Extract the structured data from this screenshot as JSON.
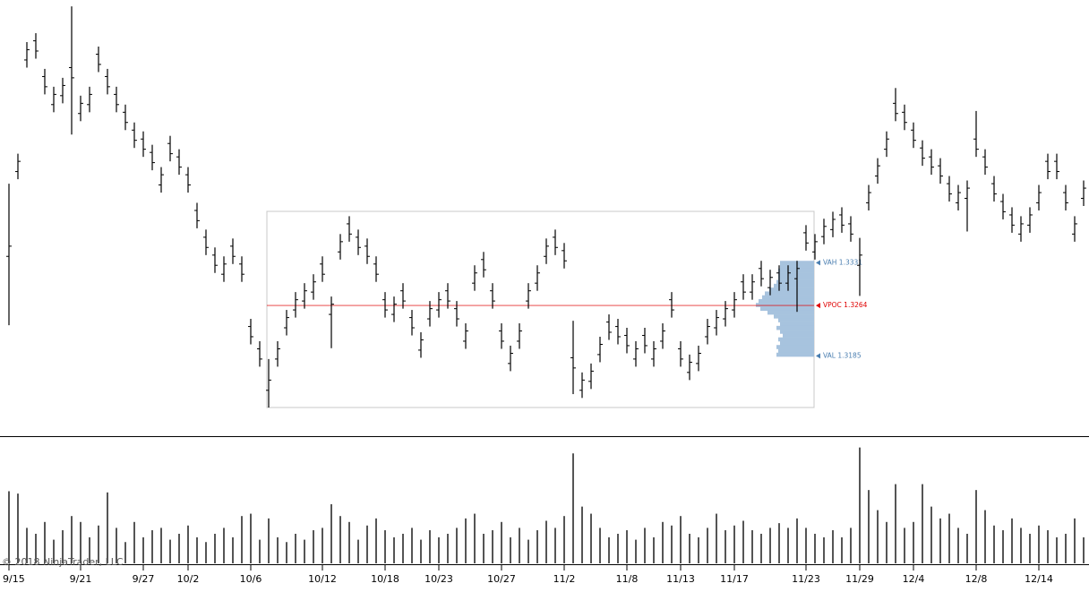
{
  "copyright": "© 2018 NinjaTrader, LLC",
  "chart_data": [
    {
      "type": "ohlc",
      "color": "#000000",
      "ylim": [
        1.3104,
        1.3736
      ],
      "categories": [
        "9/15",
        null,
        null,
        null,
        null,
        null,
        null,
        null,
        "9/21",
        null,
        null,
        null,
        null,
        null,
        null,
        "9/27",
        null,
        null,
        null,
        null,
        "10/2",
        null,
        null,
        null,
        null,
        null,
        null,
        "10/6",
        null,
        null,
        null,
        null,
        null,
        null,
        null,
        "10/12",
        null,
        null,
        null,
        null,
        null,
        null,
        "10/18",
        null,
        null,
        null,
        null,
        null,
        "10/23",
        null,
        null,
        null,
        null,
        null,
        null,
        "10/27",
        null,
        null,
        null,
        null,
        null,
        null,
        "11/2",
        null,
        null,
        null,
        null,
        null,
        null,
        "11/8",
        null,
        null,
        null,
        null,
        null,
        "11/13",
        null,
        null,
        null,
        null,
        null,
        "11/17",
        null,
        null,
        null,
        null,
        null,
        null,
        null,
        "11/23",
        null,
        null,
        null,
        null,
        null,
        "11/29",
        null,
        null,
        null,
        null,
        null,
        "12/4",
        null,
        null,
        null,
        null,
        null,
        null,
        "12/8",
        null,
        null,
        null,
        null,
        null,
        null,
        "12/14",
        null,
        null,
        null,
        null,
        null
      ],
      "open": [
        1.3341,
        1.3474,
        1.3649,
        1.3679,
        1.3623,
        1.3579,
        1.3593,
        1.3637,
        1.3565,
        1.3579,
        1.3658,
        1.3623,
        1.3595,
        1.3567,
        1.3539,
        1.3525,
        1.3504,
        1.3453,
        1.3518,
        1.3497,
        1.3469,
        1.3413,
        1.3371,
        1.3343,
        1.3313,
        1.3357,
        1.3329,
        1.3231,
        1.3196,
        1.3131,
        1.318,
        1.3229,
        1.3257,
        1.3271,
        1.3285,
        1.3329,
        1.325,
        1.3348,
        1.3392,
        1.3371,
        1.3357,
        1.3329,
        1.3273,
        1.325,
        1.3287,
        1.3245,
        1.3194,
        1.3243,
        1.3257,
        1.3287,
        1.3259,
        1.3208,
        1.3299,
        1.3336,
        1.3287,
        1.3224,
        1.3173,
        1.3208,
        1.3271,
        1.3299,
        1.3341,
        1.3371,
        1.335,
        1.3182,
        1.3131,
        1.3145,
        1.3187,
        1.3238,
        1.3231,
        1.3217,
        1.318,
        1.3217,
        1.318,
        1.3208,
        1.3273,
        1.3196,
        1.3159,
        1.3173,
        1.3215,
        1.3229,
        1.3243,
        1.3257,
        1.3301,
        1.3285,
        1.3322,
        1.3292,
        1.3315,
        1.3299,
        1.3306,
        1.3378,
        1.3348,
        1.3372,
        1.3383,
        1.3406,
        1.3392,
        1.3327,
        1.3425,
        1.3467,
        1.3509,
        1.3581,
        1.3567,
        1.3539,
        1.3511,
        1.3497,
        1.3483,
        1.3455,
        1.3425,
        1.3432,
        1.3525,
        1.3497,
        1.3455,
        1.3427,
        1.3406,
        1.3376,
        1.339,
        1.3425,
        1.349,
        1.349,
        1.3441,
        1.3376,
        1.3432
      ],
      "high": [
        1.3455,
        1.3502,
        1.3677,
        1.3691,
        1.3635,
        1.3607,
        1.3621,
        1.3733,
        1.3593,
        1.3607,
        1.367,
        1.3635,
        1.3607,
        1.3579,
        1.3551,
        1.3537,
        1.3516,
        1.3481,
        1.353,
        1.3509,
        1.3481,
        1.3425,
        1.3383,
        1.3355,
        1.3341,
        1.3369,
        1.3341,
        1.3243,
        1.3208,
        1.318,
        1.3208,
        1.3257,
        1.3285,
        1.3299,
        1.3313,
        1.3341,
        1.3278,
        1.3376,
        1.3404,
        1.3383,
        1.3369,
        1.3341,
        1.3285,
        1.3278,
        1.3299,
        1.3257,
        1.3222,
        1.3271,
        1.3285,
        1.3299,
        1.3271,
        1.3236,
        1.3327,
        1.3348,
        1.3299,
        1.3236,
        1.3201,
        1.3236,
        1.3299,
        1.3327,
        1.3369,
        1.3383,
        1.3362,
        1.324,
        1.3159,
        1.3173,
        1.3215,
        1.325,
        1.3243,
        1.3229,
        1.3208,
        1.3229,
        1.3208,
        1.3236,
        1.3285,
        1.3208,
        1.3187,
        1.3201,
        1.3243,
        1.3257,
        1.3271,
        1.3285,
        1.3313,
        1.3313,
        1.3334,
        1.332,
        1.3327,
        1.3327,
        1.3334,
        1.339,
        1.3376,
        1.34,
        1.3411,
        1.3418,
        1.3404,
        1.337,
        1.3453,
        1.3495,
        1.3537,
        1.3605,
        1.3579,
        1.3551,
        1.3523,
        1.3509,
        1.3495,
        1.3467,
        1.3453,
        1.346,
        1.3569,
        1.3509,
        1.3467,
        1.3439,
        1.3418,
        1.3404,
        1.3418,
        1.3453,
        1.3502,
        1.3502,
        1.3453,
        1.3404,
        1.346
      ],
      "low": [
        1.3233,
        1.3462,
        1.3637,
        1.3651,
        1.3595,
        1.3567,
        1.3581,
        1.3532,
        1.3553,
        1.3567,
        1.363,
        1.3595,
        1.3567,
        1.3539,
        1.3511,
        1.3497,
        1.3476,
        1.3441,
        1.349,
        1.3469,
        1.3441,
        1.3385,
        1.3343,
        1.3315,
        1.3301,
        1.3329,
        1.3301,
        1.3203,
        1.3168,
        1.3104,
        1.3168,
        1.3217,
        1.3245,
        1.3259,
        1.3273,
        1.3301,
        1.3197,
        1.3336,
        1.3364,
        1.3343,
        1.3329,
        1.3301,
        1.3245,
        1.3238,
        1.3259,
        1.3217,
        1.3182,
        1.3231,
        1.3245,
        1.3259,
        1.3231,
        1.3196,
        1.3287,
        1.3308,
        1.3259,
        1.3196,
        1.3161,
        1.3196,
        1.3259,
        1.3287,
        1.3329,
        1.3343,
        1.3322,
        1.3125,
        1.3119,
        1.3133,
        1.3175,
        1.321,
        1.3203,
        1.3189,
        1.3168,
        1.3189,
        1.3168,
        1.3196,
        1.3245,
        1.3168,
        1.3147,
        1.3161,
        1.3203,
        1.3217,
        1.3231,
        1.3245,
        1.3273,
        1.3273,
        1.3294,
        1.328,
        1.3287,
        1.3287,
        1.3254,
        1.335,
        1.3336,
        1.336,
        1.3371,
        1.3378,
        1.3364,
        1.3279,
        1.3413,
        1.3455,
        1.3497,
        1.3553,
        1.3539,
        1.3511,
        1.3483,
        1.3469,
        1.3455,
        1.3427,
        1.3413,
        1.338,
        1.3497,
        1.3469,
        1.3427,
        1.3399,
        1.3378,
        1.3364,
        1.3378,
        1.3413,
        1.3462,
        1.3462,
        1.3413,
        1.3364,
        1.342
      ],
      "close": [
        1.3357,
        1.349,
        1.3665,
        1.3663,
        1.3607,
        1.3595,
        1.3609,
        1.3621,
        1.3581,
        1.3595,
        1.3642,
        1.3607,
        1.3579,
        1.3551,
        1.3523,
        1.3509,
        1.3488,
        1.3469,
        1.3502,
        1.3481,
        1.3453,
        1.3397,
        1.3355,
        1.3327,
        1.3329,
        1.3341,
        1.3313,
        1.3215,
        1.318,
        1.3147,
        1.3196,
        1.3245,
        1.3273,
        1.3287,
        1.3301,
        1.3313,
        1.3266,
        1.3364,
        1.3376,
        1.3355,
        1.3341,
        1.3313,
        1.3257,
        1.3266,
        1.3271,
        1.3229,
        1.321,
        1.3259,
        1.3273,
        1.3271,
        1.3243,
        1.3224,
        1.3315,
        1.332,
        1.3271,
        1.3208,
        1.3189,
        1.3224,
        1.3287,
        1.3315,
        1.3357,
        1.3355,
        1.3334,
        1.3166,
        1.3147,
        1.3161,
        1.3203,
        1.3222,
        1.3215,
        1.3201,
        1.3196,
        1.3201,
        1.3196,
        1.3224,
        1.3257,
        1.318,
        1.3175,
        1.3189,
        1.3231,
        1.3245,
        1.3259,
        1.3273,
        1.3285,
        1.3301,
        1.3306,
        1.3308,
        1.3299,
        1.3315,
        1.3322,
        1.3362,
        1.3364,
        1.3388,
        1.3399,
        1.339,
        1.3376,
        1.3343,
        1.3441,
        1.3483,
        1.3525,
        1.3565,
        1.3551,
        1.3523,
        1.3495,
        1.3481,
        1.3467,
        1.3439,
        1.3441,
        1.3448,
        1.3509,
        1.3481,
        1.3439,
        1.3411,
        1.339,
        1.3392,
        1.3406,
        1.3441,
        1.3474,
        1.3474,
        1.3425,
        1.3392,
        1.3448
      ],
      "profile": {
        "color": "#a7c3de",
        "prices": [
          1.3331,
          1.3325,
          1.3319,
          1.3313,
          1.3307,
          1.3301,
          1.3295,
          1.3289,
          1.3283,
          1.3277,
          1.3271,
          1.3265,
          1.3259,
          1.3253,
          1.3247,
          1.3241,
          1.3235,
          1.3229,
          1.3223,
          1.3217,
          1.3211,
          1.3205,
          1.3199,
          1.3193,
          1.3187
        ],
        "volumes": [
          38,
          38,
          40,
          40,
          40,
          42,
          45,
          50,
          55,
          58,
          62,
          65,
          60,
          52,
          45,
          40,
          38,
          42,
          38,
          35,
          40,
          38,
          42,
          40,
          42
        ]
      },
      "levels": [
        {
          "label": "VAH 1.3331",
          "value": 1.3331,
          "color": "#4a7eb0"
        },
        {
          "label": "VPOC 1.3264",
          "value": 1.3264,
          "color": "#e00000"
        },
        {
          "label": "VAL 1.3185",
          "value": 1.3185,
          "color": "#4a7eb0"
        }
      ]
    },
    {
      "type": "bar",
      "color": "#555555",
      "ylim": [
        0,
        100
      ],
      "values": [
        61,
        59,
        30,
        25,
        35,
        20,
        28,
        40,
        35,
        22,
        32,
        60,
        30,
        18,
        35,
        22,
        28,
        30,
        20,
        25,
        32,
        22,
        18,
        25,
        30,
        22,
        40,
        42,
        20,
        38,
        22,
        18,
        25,
        20,
        28,
        30,
        50,
        40,
        35,
        20,
        32,
        38,
        28,
        22,
        25,
        30,
        20,
        28,
        22,
        25,
        30,
        38,
        42,
        25,
        28,
        35,
        22,
        30,
        20,
        28,
        36,
        30,
        40,
        93,
        48,
        42,
        30,
        22,
        25,
        28,
        20,
        30,
        22,
        35,
        32,
        40,
        25,
        22,
        30,
        42,
        28,
        32,
        36,
        28,
        25,
        30,
        34,
        30,
        38,
        30,
        25,
        22,
        28,
        22,
        30,
        98,
        62,
        45,
        35,
        67,
        30,
        35,
        67,
        48,
        38,
        42,
        30,
        25,
        62,
        45,
        32,
        28,
        38,
        30,
        25,
        32,
        28,
        22,
        25,
        38,
        22
      ]
    }
  ]
}
